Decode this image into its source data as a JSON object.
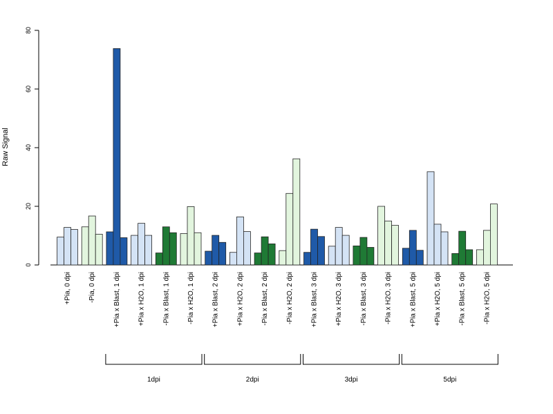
{
  "chart_data": {
    "type": "bar",
    "ylabel": "Raw Signal",
    "xlabel": "",
    "ylim": [
      0,
      80
    ],
    "yticks": [
      0,
      20,
      40,
      60,
      80
    ],
    "grid": false,
    "categories": [
      "+Pia, 0 dpi",
      "-Pia, 0 dpi",
      "+Pia x Blast, 1 dpi",
      "+Pia x H2O, 1 dpi",
      "-Pia x Blast, 1 dpi",
      "-Pia x H2O, 1 dpi",
      "+Pia x Blast, 2 dpi",
      "+Pia x H2O, 2 dpi",
      "-Pia x Blast, 2 dpi",
      "-Pia x H2O, 2 dpi",
      "+Pia x Blast, 3 dpi",
      "+Pia x H2O, 3 dpi",
      "-Pia x Blast, 3 dpi",
      "-Pia x H2O, 3 dpi",
      "+Pia x Blast, 5 dpi",
      "+Pia x H2O, 5 dpi",
      "-Pia x Blast, 5 dpi",
      "-Pia x H2O, 5 dpi"
    ],
    "bar_colors": [
      "#d4e3f5",
      "#e2f5de",
      "#1f5aa8",
      "#d4e3f5",
      "#1f7a35",
      "#e2f5de",
      "#1f5aa8",
      "#d4e3f5",
      "#1f7a35",
      "#e2f5de",
      "#1f5aa8",
      "#d4e3f5",
      "#1f7a35",
      "#e2f5de",
      "#1f5aa8",
      "#d4e3f5",
      "#1f7a35",
      "#e2f5de"
    ],
    "values": [
      [
        9.5,
        12.8,
        12.1
      ],
      [
        13.0,
        16.7,
        10.5
      ],
      [
        11.3,
        73.8,
        9.3
      ],
      [
        10.1,
        14.2,
        10.1
      ],
      [
        4.1,
        13.0,
        11.0
      ],
      [
        10.7,
        19.9,
        11.0
      ],
      [
        4.7,
        10.1,
        7.7
      ],
      [
        4.3,
        16.4,
        11.4
      ],
      [
        4.1,
        9.6,
        7.2
      ],
      [
        4.9,
        24.4,
        36.2
      ],
      [
        4.3,
        12.2,
        9.7
      ],
      [
        6.4,
        12.8,
        10.1
      ],
      [
        6.5,
        9.4,
        6.0
      ],
      [
        20.0,
        15.0,
        13.5
      ],
      [
        5.7,
        11.8,
        5.0
      ],
      [
        31.8,
        13.9,
        11.3
      ],
      [
        3.9,
        11.5,
        5.2
      ],
      [
        5.2,
        11.8,
        20.8
      ]
    ],
    "groups": [
      {
        "label": "1dpi",
        "from": 2,
        "to": 5
      },
      {
        "label": "2dpi",
        "from": 6,
        "to": 9
      },
      {
        "label": "3dpi",
        "from": 10,
        "to": 13
      },
      {
        "label": "5dpi",
        "from": 14,
        "to": 17
      }
    ]
  }
}
